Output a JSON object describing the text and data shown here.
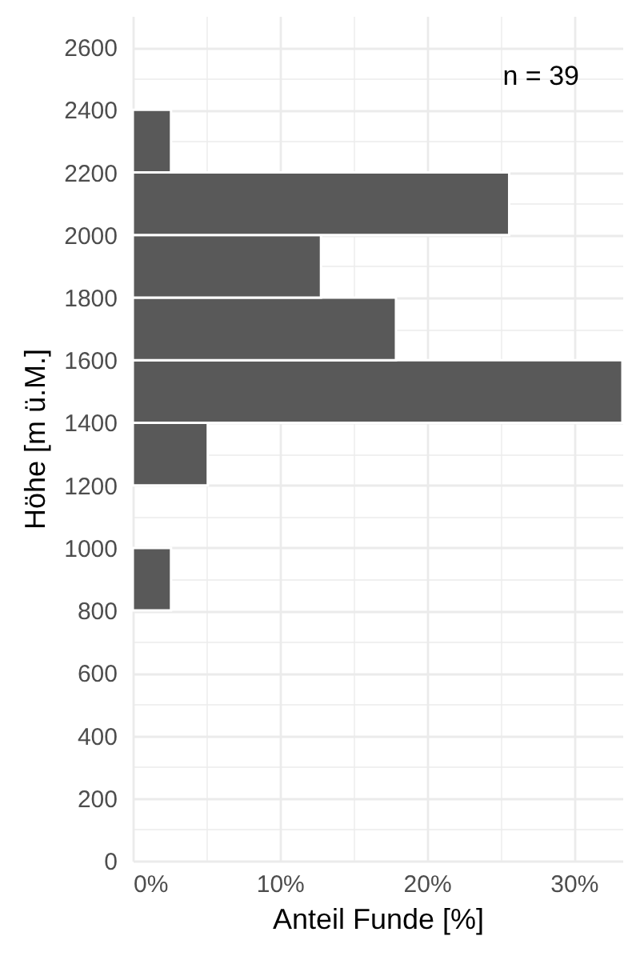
{
  "chart_data": {
    "type": "histogram",
    "orientation": "horizontal",
    "xlabel": "Anteil Funde [%]",
    "ylabel": "Höhe [m ü.M.]",
    "annotations": [
      "n = 39"
    ],
    "bins": [
      800,
      1000,
      1200,
      1400,
      1600,
      1800,
      2000,
      2200,
      2400
    ],
    "values": [
      2.6,
      0,
      5.1,
      33.3,
      17.9,
      12.8,
      25.6,
      2.6
    ],
    "color": "#595959",
    "xlim": [
      0,
      33.3
    ],
    "xticks": [
      {
        "value": 0,
        "label": "0%"
      },
      {
        "value": 5,
        "label": null
      },
      {
        "value": 10,
        "label": "10%"
      },
      {
        "value": 15,
        "label": null
      },
      {
        "value": 20,
        "label": "20%"
      },
      {
        "value": 25,
        "label": null
      },
      {
        "value": 30,
        "label": "30%"
      }
    ],
    "ylim": [
      0,
      2700
    ],
    "yticks": [
      0,
      {
        "value": 100,
        "label": null
      },
      200,
      {
        "value": 300,
        "label": null
      },
      400,
      {
        "value": 500,
        "label": null
      },
      600,
      {
        "value": 700,
        "label": null
      },
      800,
      {
        "value": 900,
        "label": null
      },
      1000,
      {
        "value": 1100,
        "label": null
      },
      1200,
      {
        "value": 1300,
        "label": null
      },
      1400,
      1600,
      {
        "value": 1700,
        "label": null
      },
      1800,
      {
        "value": 1900,
        "label": null
      },
      2000,
      {
        "value": 2100,
        "label": null
      },
      2200,
      {
        "value": 2300,
        "label": null
      },
      2400,
      {
        "value": 2500,
        "label": null
      },
      2600
    ],
    "grid": true
  }
}
